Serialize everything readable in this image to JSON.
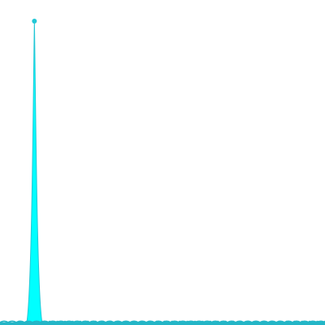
{
  "chart_data": {
    "type": "area",
    "title": "",
    "xlabel": "",
    "ylabel": "",
    "grid": false,
    "legend": "none",
    "x": [
      0,
      1,
      2,
      3,
      4,
      5,
      6,
      7,
      8,
      9,
      10,
      11,
      12,
      13,
      14,
      15,
      16,
      17,
      18,
      19,
      20,
      21,
      22,
      23,
      24,
      25,
      26,
      27,
      28,
      29,
      30,
      31,
      32,
      33,
      34,
      35,
      36,
      37,
      38,
      39,
      40
    ],
    "xlim": [
      -2.5,
      40
    ],
    "ylim": [
      0,
      1.0
    ],
    "series": [
      {
        "color": "#00ffff",
        "values": [
          0,
          0,
          1.0,
          0,
          0,
          0,
          0,
          0,
          0,
          0,
          0,
          0,
          0,
          0,
          0,
          0,
          0,
          0,
          0,
          0,
          0,
          0,
          0,
          0,
          0,
          0,
          0,
          0,
          0,
          0,
          0,
          0,
          0,
          0,
          0,
          0,
          0,
          0,
          0,
          0,
          0
        ]
      }
    ],
    "colors": {
      "fill": "#00ffff",
      "edge": "#22c7d6",
      "baseline_marker": "#23b5c6"
    }
  }
}
